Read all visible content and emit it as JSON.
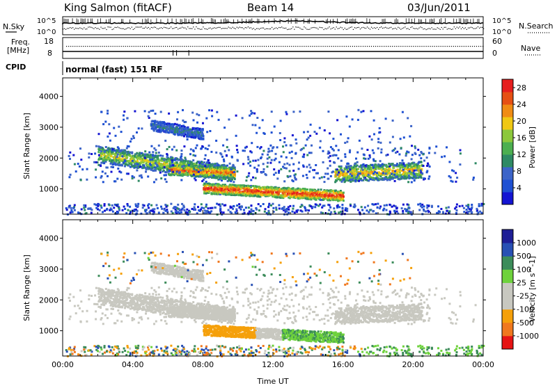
{
  "header": {
    "title": "King Salmon (fitACF)",
    "beam": "Beam 14",
    "date": "03/Jun/2011"
  },
  "panels": {
    "nsky": {
      "left_label": "N.Sky",
      "right_label": "N.Search",
      "left_ticks": [
        "10^5",
        "10^0"
      ],
      "right_ticks": [
        "10^5",
        "10^0"
      ]
    },
    "freq": {
      "left_label_1": "Freq.",
      "left_label_2": "[MHz]",
      "right_label": "Nave",
      "left_ticks": [
        "18",
        "8"
      ],
      "right_ticks": [
        "60",
        "0"
      ]
    },
    "cpid": {
      "label": "CPID",
      "text": "normal (fast) 151 RF"
    }
  },
  "colors": {
    "power": [
      "#1414d2",
      "#1e50d2",
      "#3c64c8",
      "#2e8a64",
      "#4caf50",
      "#8cc83c",
      "#f0c814",
      "#f08c14",
      "#e65014",
      "#e61e1e"
    ],
    "velocity": [
      "#e61414",
      "#f0781e",
      "#f5a00a",
      "#c8c8c0",
      "#c8c8c0",
      "#6ed23c",
      "#3c8c5a",
      "#2850b4",
      "#1e1e96"
    ]
  },
  "chart_data": [
    {
      "type": "heatmap",
      "title": "",
      "ylabel": "Slant Range [km]",
      "xlabel": "",
      "ylim": [
        180,
        4600
      ],
      "xlim": [
        0,
        24
      ],
      "y_ticks": [
        "4000",
        "3000",
        "2000",
        "1000"
      ],
      "y_tick_values": [
        4000,
        3000,
        2000,
        1000
      ],
      "colorbar": {
        "label": "Power [dB]",
        "ticks": [
          "28",
          "24",
          "20",
          "16",
          "12",
          "8",
          "4"
        ],
        "tick_values": [
          28,
          24,
          20,
          16,
          12,
          8,
          4
        ],
        "range": [
          0,
          30
        ]
      },
      "structures": [
        {
          "t0": 2.0,
          "t1": 9.8,
          "r_start": 2150,
          "r_end": 1500,
          "value": 16
        },
        {
          "t0": 6.0,
          "t1": 9.8,
          "r_start": 1650,
          "r_end": 1550,
          "value": 22
        },
        {
          "t0": 8.0,
          "t1": 16.0,
          "r_start": 1050,
          "r_end": 800,
          "value": 24
        },
        {
          "t0": 15.5,
          "t1": 20.5,
          "r_start": 1500,
          "r_end": 1650,
          "value": 18
        },
        {
          "t0": 5.0,
          "t1": 8.0,
          "r_start": 3100,
          "r_end": 2800,
          "value": 8
        }
      ]
    },
    {
      "type": "heatmap",
      "title": "",
      "ylabel": "Slant Range [km]",
      "xlabel": "Time UT",
      "ylim": [
        180,
        4600
      ],
      "xlim": [
        0,
        24
      ],
      "x_ticks": [
        "00:00",
        "04:00",
        "08:00",
        "12:00",
        "16:00",
        "20:00",
        "00:00"
      ],
      "x_tick_values": [
        0,
        4,
        8,
        12,
        16,
        20,
        24
      ],
      "y_ticks": [
        "4000",
        "3000",
        "2000",
        "1000"
      ],
      "y_tick_values": [
        4000,
        3000,
        2000,
        1000
      ],
      "colorbar": {
        "label": "Velocity [m s^-1]",
        "ticks": [
          "1000",
          "500",
          "100",
          "25",
          "-25",
          "-100",
          "-500",
          "-1000"
        ],
        "tick_values": [
          1000,
          500,
          100,
          25,
          -25,
          -100,
          -500,
          -1000
        ]
      },
      "structures": [
        {
          "t0": 8.0,
          "t1": 11.0,
          "r_start": 1000,
          "r_end": 850,
          "value": -200
        },
        {
          "t0": 11.5,
          "t1": 15.3,
          "r_start": 950,
          "r_end": 850,
          "value": 150
        },
        {
          "t0": 2.0,
          "t1": 20.5,
          "r_start": 1800,
          "r_end": 1600,
          "value": 0
        }
      ]
    }
  ]
}
